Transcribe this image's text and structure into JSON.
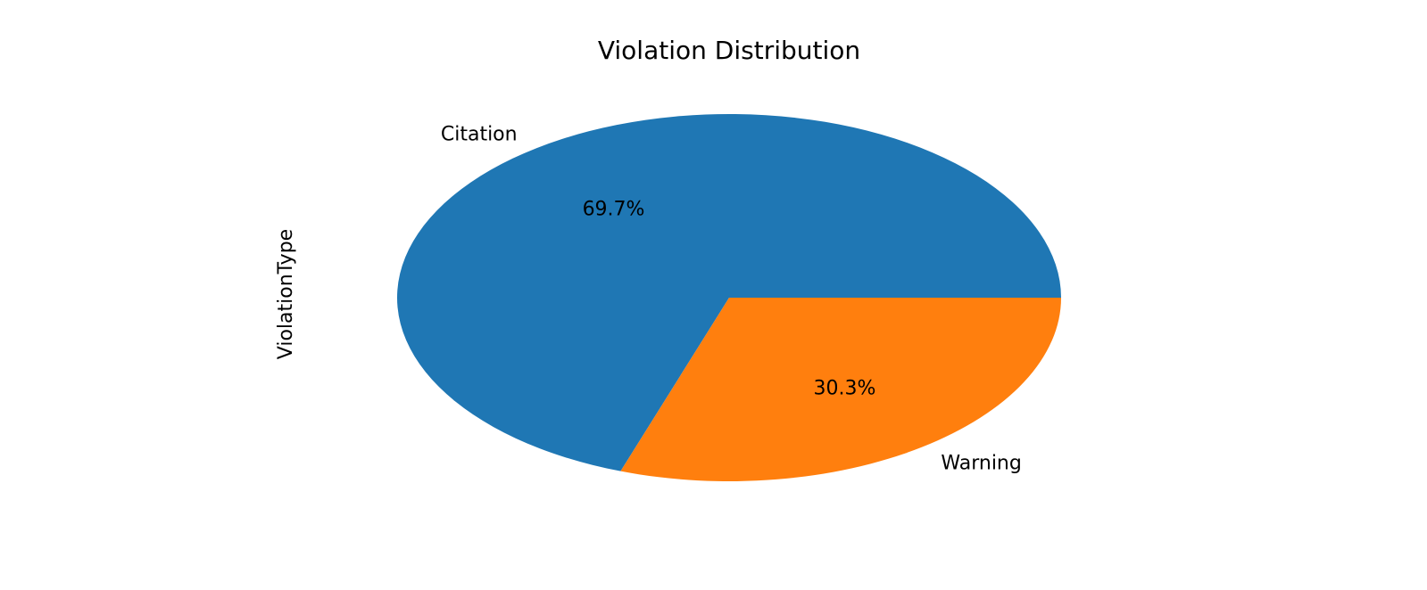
{
  "chart_data": {
    "type": "pie",
    "title": "Violation Distribution",
    "ylabel": "ViolationType",
    "categories": [
      "Citation",
      "Warning"
    ],
    "values": [
      69.7,
      30.3
    ],
    "percent_labels": [
      "69.7%",
      "30.3%"
    ],
    "colors": [
      "#1f77b4",
      "#ff7f0e"
    ],
    "start_angle_deg": 0,
    "direction": "counterclockwise"
  }
}
